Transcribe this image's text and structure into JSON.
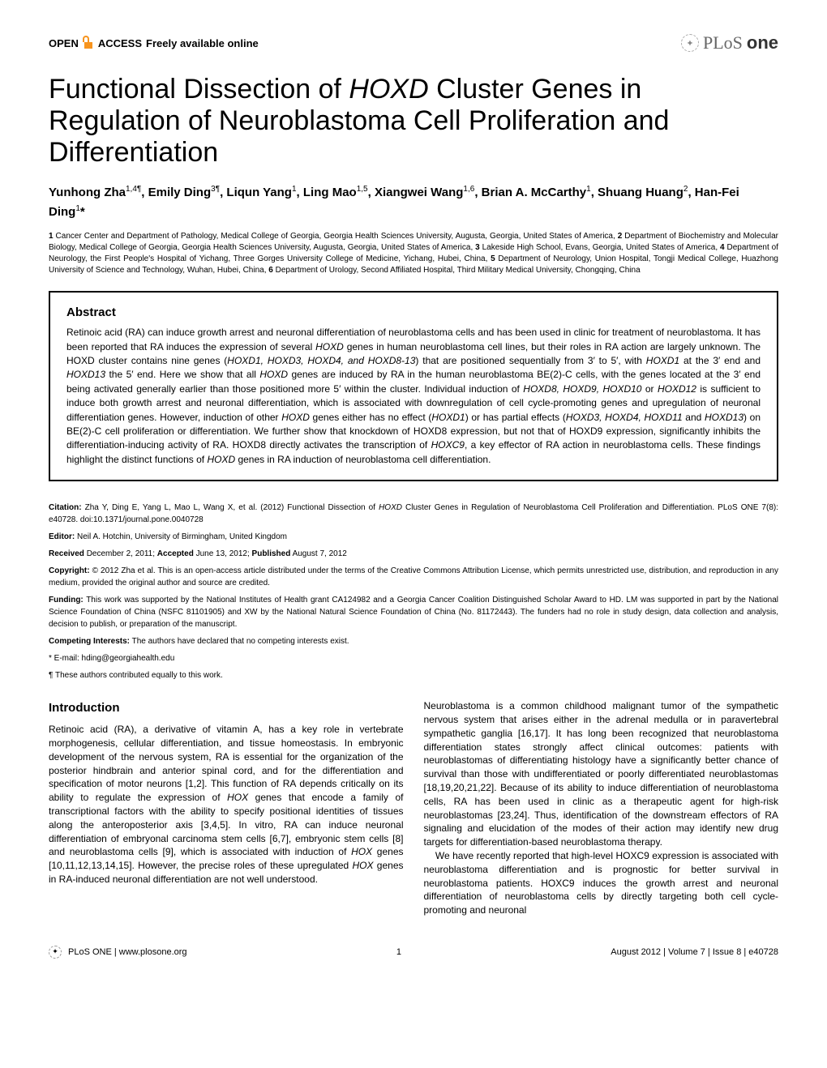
{
  "header": {
    "open": "OPEN",
    "access": "ACCESS",
    "freely": "Freely available online",
    "plos": "PLoS",
    "one": "one"
  },
  "title_pre": "Functional Dissection of ",
  "title_italic": "HOXD",
  "title_post": " Cluster Genes in Regulation of Neuroblastoma Cell Proliferation and Differentiation",
  "authors_html": "Yunhong Zha<sup>1,4¶</sup>, Emily Ding<sup>3¶</sup>, Liqun Yang<sup>1</sup>, Ling Mao<sup>1,5</sup>, Xiangwei Wang<sup>1,6</sup>, Brian A. McCarthy<sup>1</sup>, Shuang Huang<sup>2</sup>, Han-Fei Ding<sup>1</sup>*",
  "affiliations_html": "<b>1</b> Cancer Center and Department of Pathology, Medical College of Georgia, Georgia Health Sciences University, Augusta, Georgia, United States of America, <b>2</b> Department of Biochemistry and Molecular Biology, Medical College of Georgia, Georgia Health Sciences University, Augusta, Georgia, United States of America, <b>3</b> Lakeside High School, Evans, Georgia, United States of America, <b>4</b> Department of Neurology, the First People's Hospital of Yichang, Three Gorges University College of Medicine, Yichang, Hubei, China, <b>5</b> Department of Neurology, Union Hospital, Tongji Medical College, Huazhong University of Science and Technology, Wuhan, Hubei, China, <b>6</b> Department of Urology, Second Affiliated Hospital, Third Military Medical University, Chongqing, China",
  "abstract": {
    "heading": "Abstract",
    "text_html": "Retinoic acid (RA) can induce growth arrest and neuronal differentiation of neuroblastoma cells and has been used in clinic for treatment of neuroblastoma. It has been reported that RA induces the expression of several <em>HOXD</em> genes in human neuroblastoma cell lines, but their roles in RA action are largely unknown. The HOXD cluster contains nine genes (<em>HOXD1, HOXD3, HOXD4, and HOXD8-13</em>) that are positioned sequentially from 3′ to 5′, with <em>HOXD1</em> at the 3′ end and <em>HOXD13</em> the 5′ end. Here we show that all <em>HOXD</em> genes are induced by RA in the human neuroblastoma BE(2)-C cells, with the genes located at the 3′ end being activated generally earlier than those positioned more 5′ within the cluster. Individual induction of <em>HOXD8, HOXD9, HOXD10</em> or <em>HOXD12</em> is sufficient to induce both growth arrest and neuronal differentiation, which is associated with downregulation of cell cycle-promoting genes and upregulation of neuronal differentiation genes. However, induction of other <em>HOXD</em> genes either has no effect (<em>HOXD1</em>) or has partial effects (<em>HOXD3, HOXD4, HOXD11</em> and <em>HOXD13</em>) on BE(2)-C cell proliferation or differentiation. We further show that knockdown of HOXD8 expression, but not that of HOXD9 expression, significantly inhibits the differentiation-inducing activity of RA. HOXD8 directly activates the transcription of <em>HOXC9</em>, a key effector of RA action in neuroblastoma cells. These findings highlight the distinct functions of <em>HOXD</em> genes in RA induction of neuroblastoma cell differentiation."
  },
  "meta": {
    "citation_html": "<b>Citation:</b> Zha Y, Ding E, Yang L, Mao L, Wang X, et al. (2012) Functional Dissection of <em>HOXD</em> Cluster Genes in Regulation of Neuroblastoma Cell Proliferation and Differentiation. PLoS ONE 7(8): e40728. doi:10.1371/journal.pone.0040728",
    "editor_html": "<b>Editor:</b> Neil A. Hotchin, University of Birmingham, United Kingdom",
    "dates_html": "<b>Received</b> December 2, 2011; <b>Accepted</b> June 13, 2012; <b>Published</b> August 7, 2012",
    "copyright_html": "<b>Copyright:</b> © 2012 Zha et al. This is an open-access article distributed under the terms of the Creative Commons Attribution License, which permits unrestricted use, distribution, and reproduction in any medium, provided the original author and source are credited.",
    "funding_html": "<b>Funding:</b> This work was supported by the National Institutes of Health grant CA124982 and a Georgia Cancer Coalition Distinguished Scholar Award to HD. LM was supported in part by the National Science Foundation of China (NSFC 81101905) and XW by the National Natural Science Foundation of China (No. 81172443). The funders had no role in study design, data collection and analysis, decision to publish, or preparation of the manuscript.",
    "competing_html": "<b>Competing Interests:</b> The authors have declared that no competing interests exist.",
    "email": "* E-mail: hding@georgiahealth.edu",
    "equal": "¶ These authors contributed equally to this work."
  },
  "intro": {
    "heading": "Introduction",
    "col1_p1_html": "Retinoic acid (RA), a derivative of vitamin A, has a key role in vertebrate morphogenesis, cellular differentiation, and tissue homeostasis. In embryonic development of the nervous system, RA is essential for the organization of the posterior hindbrain and anterior spinal cord, and for the differentiation and specification of motor neurons [1,2]. This function of RA depends critically on its ability to regulate the expression of <em>HOX</em> genes that encode a family of transcriptional factors with the ability to specify positional identities of tissues along the anteroposterior axis [3,4,5]. In vitro, RA can induce neuronal differentiation of embryonal carcinoma stem cells [6,7], embryonic stem cells [8] and neuroblastoma cells [9], which is associated with induction of <em>HOX</em> genes [10,11,12,13,14,15]. However, the precise roles of these upregulated <em>HOX</em> genes in RA-induced neuronal differentiation are not well understood.",
    "col2_p1_html": "Neuroblastoma is a common childhood malignant tumor of the sympathetic nervous system that arises either in the adrenal medulla or in paravertebral sympathetic ganglia [16,17]. It has long been recognized that neuroblastoma differentiation states strongly affect clinical outcomes: patients with neuroblastomas of differentiating histology have a significantly better chance of survival than those with undifferentiated or poorly differentiated neuroblastomas [18,19,20,21,22]. Because of its ability to induce differentiation of neuroblastoma cells, RA has been used in clinic as a therapeutic agent for high-risk neuroblastomas [23,24]. Thus, identification of the downstream effectors of RA signaling and elucidation of the modes of their action may identify new drug targets for differentiation-based neuroblastoma therapy.",
    "col2_p2_html": "We have recently reported that high-level HOXC9 expression is associated with neuroblastoma differentiation and is prognostic for better survival in neuroblastoma patients. HOXC9 induces the growth arrest and neuronal differentiation of neuroblastoma cells by directly targeting both cell cycle-promoting and neuronal"
  },
  "footer": {
    "journal": "PLoS ONE | www.plosone.org",
    "page": "1",
    "issue": "August 2012 | Volume 7 | Issue 8 | e40728"
  }
}
